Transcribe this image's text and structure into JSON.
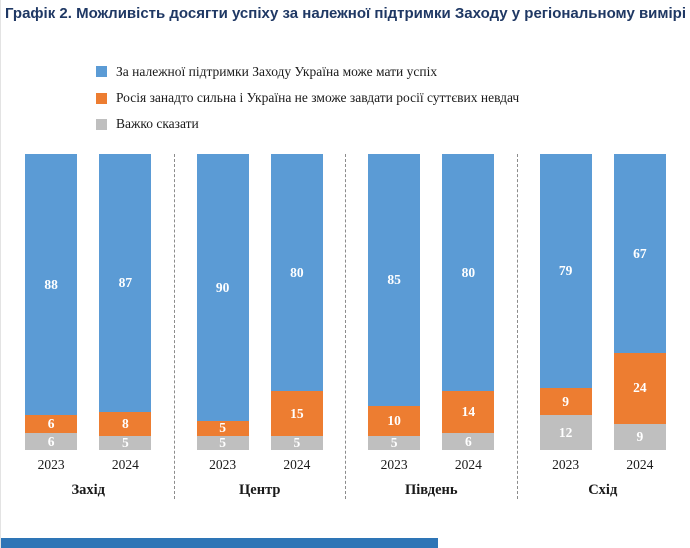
{
  "page": {
    "accent_bar_color": "#2E75B6"
  },
  "chart_data": {
    "type": "bar",
    "stacked": true,
    "unit": "percent",
    "title": "Графік 2. Можливість досягти успіху за належної підтримки Заходу у регіональному вимірі",
    "legend_position": "top-left",
    "grid": false,
    "ylim": [
      0,
      100
    ],
    "groups": [
      "Захід",
      "Центр",
      "Південь",
      "Схід"
    ],
    "years": [
      "2023",
      "2024"
    ],
    "series": [
      {
        "name": "За належної підтримки Заходу Україна може мати успіх",
        "color": "#5B9BD5",
        "values": [
          [
            88,
            87
          ],
          [
            90,
            80
          ],
          [
            85,
            80
          ],
          [
            79,
            67
          ]
        ]
      },
      {
        "name": "Росія занадто сильна і Україна не зможе завдати росії суттєвих невдач",
        "color": "#ED7D31",
        "values": [
          [
            6,
            8
          ],
          [
            5,
            15
          ],
          [
            10,
            14
          ],
          [
            9,
            24
          ]
        ]
      },
      {
        "name": "Важко сказати",
        "color": "#BFBFBF",
        "values": [
          [
            6,
            5
          ],
          [
            5,
            5
          ],
          [
            5,
            6
          ],
          [
            12,
            9
          ]
        ]
      }
    ]
  }
}
